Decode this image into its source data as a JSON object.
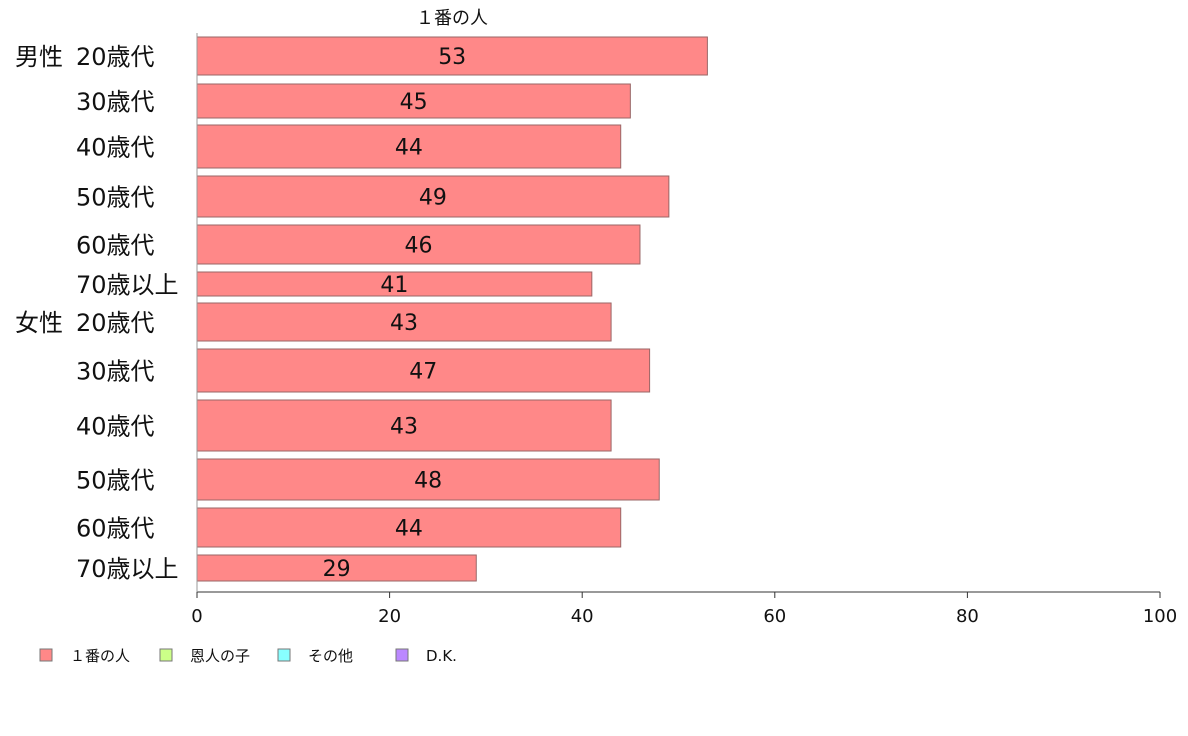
{
  "chart_data": {
    "type": "bar",
    "orientation": "horizontal",
    "series_title": "１番の人",
    "categories": [
      {
        "group": "男性",
        "label": "20歳代"
      },
      {
        "group": "",
        "label": "30歳代"
      },
      {
        "group": "",
        "label": "40歳代"
      },
      {
        "group": "",
        "label": "50歳代"
      },
      {
        "group": "",
        "label": "60歳代"
      },
      {
        "group": "",
        "label": "70歳以上"
      },
      {
        "group": "女性",
        "label": "20歳代"
      },
      {
        "group": "",
        "label": "30歳代"
      },
      {
        "group": "",
        "label": "40歳代"
      },
      {
        "group": "",
        "label": "50歳代"
      },
      {
        "group": "",
        "label": "60歳代"
      },
      {
        "group": "",
        "label": "70歳以上"
      }
    ],
    "series": [
      {
        "name": "１番の人",
        "color": "#ff8888",
        "values": [
          53,
          45,
          44,
          49,
          46,
          41,
          43,
          47,
          43,
          48,
          44,
          29
        ]
      }
    ],
    "legend": [
      {
        "name": "１番の人",
        "color": "#ff8888"
      },
      {
        "name": "恩人の子",
        "color": "#ccff88"
      },
      {
        "name": "その他",
        "color": "#88ffff"
      },
      {
        "name": "D.K.",
        "color": "#bb88ff"
      }
    ],
    "xlim": [
      0,
      100
    ],
    "xticks": [
      0,
      20,
      40,
      60,
      80,
      100
    ],
    "grid": false,
    "legend_position": "bottom-left"
  }
}
